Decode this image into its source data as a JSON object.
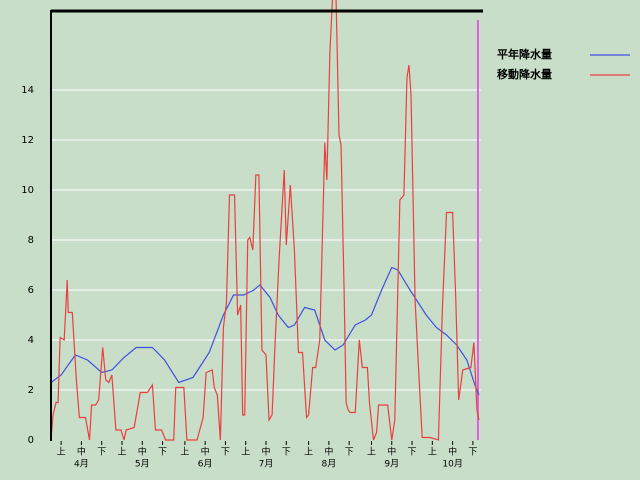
{
  "chart_data": {
    "type": "line",
    "xlim": [
      0,
      212
    ],
    "ylim": [
      0,
      17.2
    ],
    "yticks": [
      0,
      2,
      4,
      6,
      8,
      10,
      12,
      14
    ],
    "xticks": [
      {
        "value": 5,
        "label": "上"
      },
      {
        "value": 15,
        "label": "中"
      },
      {
        "value": 25,
        "label": "下"
      },
      {
        "value": 35,
        "label": "上"
      },
      {
        "value": 45,
        "label": "中"
      },
      {
        "value": 55,
        "label": "下"
      },
      {
        "value": 66,
        "label": "上"
      },
      {
        "value": 76,
        "label": "中"
      },
      {
        "value": 86,
        "label": "下"
      },
      {
        "value": 96,
        "label": "上"
      },
      {
        "value": 106,
        "label": "中"
      },
      {
        "value": 116,
        "label": "下"
      },
      {
        "value": 127,
        "label": "上"
      },
      {
        "value": 137,
        "label": "中"
      },
      {
        "value": 147,
        "label": "下"
      },
      {
        "value": 158,
        "label": "上"
      },
      {
        "value": 168,
        "label": "中"
      },
      {
        "value": 178,
        "label": "下"
      },
      {
        "value": 188,
        "label": "上"
      },
      {
        "value": 198,
        "label": "中"
      },
      {
        "value": 208,
        "label": "下"
      }
    ],
    "months": [
      {
        "value": 15,
        "label": "4月"
      },
      {
        "value": 45,
        "label": "5月"
      },
      {
        "value": 76,
        "label": "6月"
      },
      {
        "value": 106,
        "label": "7月"
      },
      {
        "value": 137,
        "label": "8月"
      },
      {
        "value": 168,
        "label": "9月"
      },
      {
        "value": 198,
        "label": "10月"
      }
    ],
    "grid": true,
    "marker": 210.5,
    "marker_color": "#e060e0",
    "series": [
      {
        "name": "平年降水量",
        "color": "#4050e0",
        "x": [
          0,
          5,
          12,
          18,
          25,
          30,
          36,
          42,
          50,
          56,
          63,
          70,
          74,
          78,
          85,
          90,
          95,
          100,
          103,
          108,
          112,
          117,
          120,
          125,
          130,
          135,
          140,
          144,
          150,
          155,
          158,
          163,
          168,
          171,
          177,
          185,
          190,
          195,
          200,
          205,
          209,
          211
        ],
        "values": [
          2.3,
          2.6,
          3.4,
          3.2,
          2.7,
          2.8,
          3.3,
          3.7,
          3.7,
          3.2,
          2.3,
          2.5,
          3.0,
          3.5,
          5.0,
          5.8,
          5.8,
          6.0,
          6.2,
          5.7,
          5.0,
          4.5,
          4.6,
          5.3,
          5.2,
          4.0,
          3.6,
          3.8,
          4.6,
          4.8,
          5.0,
          6.0,
          6.9,
          6.8,
          6.0,
          5.0,
          4.5,
          4.2,
          3.8,
          3.2,
          2.2,
          1.8
        ]
      },
      {
        "name": "移動降水量",
        "color": "#e84040",
        "x": [
          0,
          1,
          2.5,
          3.5,
          4.5,
          6.5,
          8,
          8.5,
          10.5,
          12.5,
          14,
          17,
          19,
          20,
          22,
          23.5,
          25.5,
          27,
          28.5,
          30,
          32,
          34.5,
          36,
          37,
          41,
          44,
          47.5,
          50,
          51.5,
          54.5,
          56.5,
          60.5,
          61.5,
          65.5,
          67,
          72,
          75,
          76.5,
          79.5,
          80.5,
          82,
          83.5,
          85,
          86.5,
          88,
          90.5,
          92,
          93.5,
          94.5,
          95.5,
          97,
          98,
          99.5,
          101,
          102.5,
          104,
          106,
          107.5,
          109,
          110.5,
          112.5,
          115,
          116,
          118,
          120,
          122,
          124,
          126,
          127,
          129,
          130.5,
          132.5,
          135,
          136,
          137.5,
          139,
          140.5,
          142,
          143,
          144.5,
          145.5,
          146.5,
          147.5,
          150,
          152,
          153.5,
          156,
          157,
          159,
          160.5,
          161.5,
          166,
          168,
          169.5,
          172,
          174,
          175.5,
          176.5,
          177.5,
          179.5,
          181,
          183,
          187,
          191,
          193,
          195,
          198,
          199.5,
          201,
          203,
          207,
          208.5,
          210,
          211
        ],
        "values": [
          0,
          1.0,
          1.5,
          1.5,
          4.1,
          4.0,
          6.4,
          5.1,
          5.1,
          2.4,
          0.9,
          0.9,
          0,
          1.4,
          1.4,
          1.6,
          3.7,
          2.4,
          2.3,
          2.6,
          0.4,
          0.4,
          0,
          0.4,
          0.5,
          1.9,
          1.9,
          2.2,
          0.4,
          0.4,
          0,
          0,
          2.1,
          2.1,
          0,
          0,
          0.9,
          2.7,
          2.8,
          2.1,
          1.8,
          0,
          4.5,
          5.5,
          9.8,
          9.8,
          5.0,
          5.4,
          1.0,
          1.0,
          8.0,
          8.1,
          7.6,
          10.6,
          10.6,
          3.6,
          3.4,
          0.8,
          1.0,
          3.9,
          7.3,
          10.8,
          7.8,
          10.2,
          7.6,
          3.5,
          3.5,
          0.9,
          1.0,
          2.9,
          2.9,
          4.0,
          11.9,
          10.4,
          15.5,
          18,
          17.8,
          12.2,
          11.8,
          6.0,
          1.5,
          1.2,
          1.1,
          1.1,
          4.0,
          2.9,
          2.9,
          1.5,
          0,
          0.3,
          1.4,
          1.4,
          0,
          0.8,
          9.6,
          9.8,
          14.5,
          15.0,
          13.8,
          5.6,
          3.2,
          0.1,
          0.1,
          0,
          5.3,
          9.1,
          9.1,
          5.8,
          1.6,
          2.8,
          2.9,
          3.9,
          1.2,
          0.8
        ]
      }
    ]
  }
}
